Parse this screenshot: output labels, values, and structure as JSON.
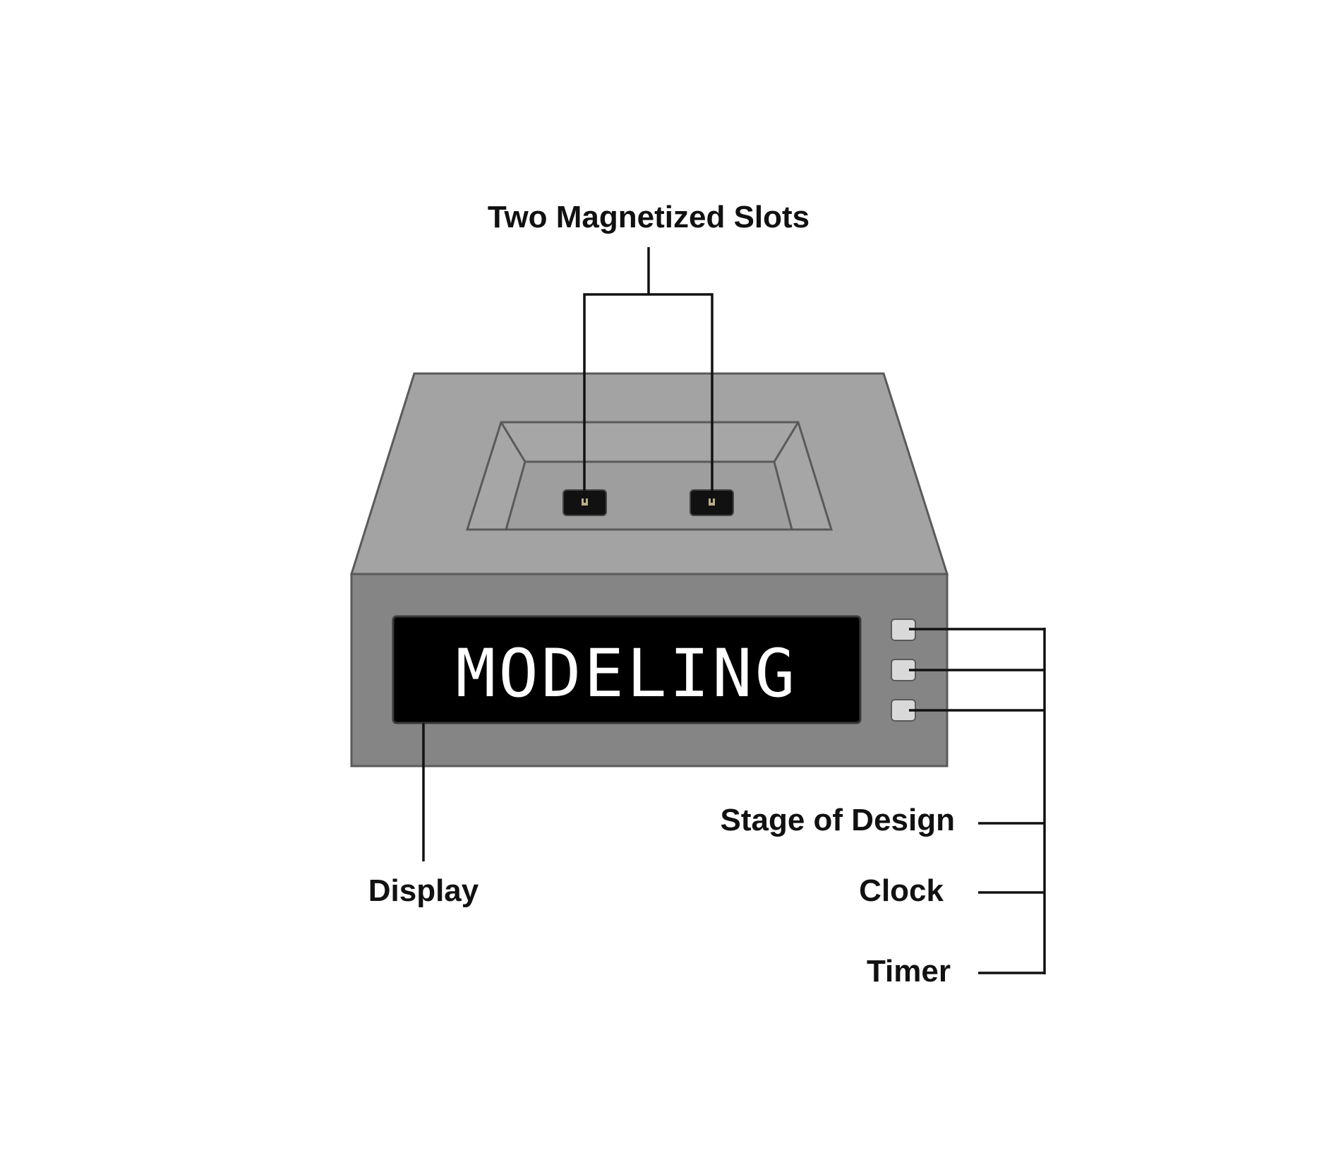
{
  "diagram": {
    "labels": {
      "slots": "Two Magnetized Slots",
      "display": "Display",
      "stage_of_design": "Stage of Design",
      "clock": "Clock",
      "timer": "Timer"
    },
    "display_text": "MODELING",
    "colors": {
      "top_face": "#a3a3a3",
      "front_face": "#848584",
      "tray_inner": "#9e9e9e",
      "outline": "#5a5a5a",
      "screen": "#000000",
      "screen_text": "#ffffff",
      "button": "#d9d9d9",
      "slot": "#111111",
      "slot_contact": "#b8ad86",
      "leader_line": "#111111"
    },
    "icons": {
      "slot": "magnetized-slot-icon",
      "button": "side-button-icon"
    }
  }
}
